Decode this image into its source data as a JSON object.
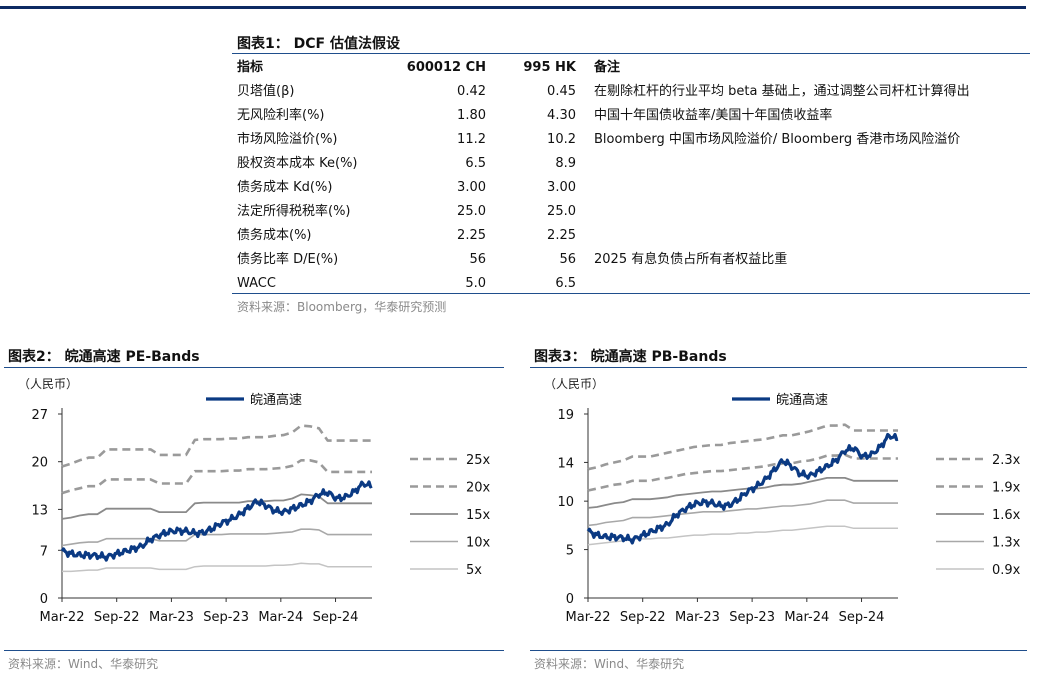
{
  "table": {
    "title": "图表1： DCF 估值法假设",
    "headers": [
      "指标",
      "600012 CH",
      "995 HK",
      "备注"
    ],
    "rows": [
      [
        "贝塔值(β)",
        "0.42",
        "0.45",
        "在剔除杠杆的行业平均 beta 基础上，通过调整公司杆杠计算得出"
      ],
      [
        "无风险利率(%)",
        "1.80",
        "4.30",
        "中国十年国债收益率/美国十年国债收益率"
      ],
      [
        "市场风险溢价(%)",
        "11.2",
        "10.2",
        "Bloomberg 中国市场风险溢价/ Bloomberg 香港市场风险溢价"
      ],
      [
        "股权资本成本 Ke(%)",
        "6.5",
        "8.9",
        ""
      ],
      [
        "债务成本 Kd(%)",
        "3.00",
        "3.00",
        ""
      ],
      [
        "法定所得税税率(%)",
        "25.0",
        "25.0",
        ""
      ],
      [
        "债务成本(%)",
        "2.25",
        "2.25",
        ""
      ],
      [
        "债务比率 D/E(%)",
        "56",
        "56",
        "2025 有息负债占所有者权益比重"
      ],
      [
        "WACC",
        "5.0",
        "6.5",
        ""
      ]
    ],
    "source": "资料来源：Bloomberg，华泰研究预测"
  },
  "chart_data": [
    {
      "type": "line",
      "title": "图表2： 皖通高速 PE-Bands",
      "ylabel": "（人民币）",
      "ylim": [
        0,
        27
      ],
      "yticks": [
        0,
        7,
        13,
        20,
        27
      ],
      "xticks": [
        "Mar-22",
        "Sep-22",
        "Mar-23",
        "Sep-23",
        "Mar-24",
        "Sep-24"
      ],
      "x_start": "2022-03",
      "x_end": "2025-01",
      "series": [
        {
          "name": "皖通高速",
          "style": "price",
          "values": [
            6.9,
            6.5,
            6.3,
            6.3,
            6.2,
            6.0,
            6.4,
            6.8,
            7.2,
            7.6,
            8.6,
            9.2,
            9.7,
            9.9,
            9.8,
            9.5,
            9.6,
            10.2,
            11.0,
            11.5,
            12.2,
            13.2,
            14.2,
            13.6,
            12.8,
            12.6,
            13.1,
            13.6,
            14.2,
            15.2,
            15.5,
            14.6,
            14.8,
            15.6,
            16.8,
            16.4
          ]
        },
        {
          "name": "25x",
          "style": "dash",
          "values": [
            19.3,
            19.7,
            20.2,
            20.6,
            20.6,
            21.8,
            21.8,
            21.8,
            21.8,
            21.8,
            21.8,
            21.0,
            21.0,
            21.0,
            21.0,
            23.2,
            23.3,
            23.3,
            23.3,
            23.4,
            23.4,
            23.6,
            23.6,
            23.6,
            23.8,
            23.9,
            24.3,
            25.3,
            25.2,
            24.9,
            23.1,
            23.1,
            23.1,
            23.1,
            23.1,
            23.1
          ]
        },
        {
          "name": "20x",
          "style": "dash",
          "values": [
            15.4,
            15.8,
            16.1,
            16.4,
            16.4,
            17.4,
            17.4,
            17.4,
            17.4,
            17.4,
            17.4,
            16.8,
            16.8,
            16.8,
            16.8,
            18.6,
            18.6,
            18.6,
            18.6,
            18.7,
            18.7,
            18.9,
            18.9,
            18.9,
            19.0,
            19.1,
            19.4,
            20.2,
            20.2,
            19.9,
            18.5,
            18.5,
            18.5,
            18.5,
            18.5,
            18.5
          ]
        },
        {
          "name": "15x",
          "style": "solid-dark",
          "values": [
            11.6,
            11.8,
            12.1,
            12.3,
            12.3,
            13.1,
            13.1,
            13.1,
            13.1,
            13.1,
            13.1,
            12.6,
            12.6,
            12.6,
            12.6,
            13.9,
            14.0,
            14.0,
            14.0,
            14.0,
            14.0,
            14.2,
            14.2,
            14.2,
            14.3,
            14.3,
            14.6,
            15.2,
            15.1,
            14.9,
            13.9,
            13.9,
            13.9,
            13.9,
            13.9,
            13.9
          ]
        },
        {
          "name": "10x",
          "style": "solid-mid",
          "values": [
            7.7,
            7.9,
            8.1,
            8.2,
            8.2,
            8.7,
            8.7,
            8.7,
            8.7,
            8.7,
            8.7,
            8.4,
            8.4,
            8.4,
            8.4,
            9.3,
            9.3,
            9.3,
            9.3,
            9.4,
            9.4,
            9.4,
            9.4,
            9.4,
            9.5,
            9.6,
            9.7,
            10.1,
            10.1,
            10.0,
            9.3,
            9.3,
            9.3,
            9.3,
            9.3,
            9.3
          ]
        },
        {
          "name": "5x",
          "style": "solid-light",
          "values": [
            3.9,
            3.9,
            4.0,
            4.1,
            4.1,
            4.4,
            4.4,
            4.4,
            4.4,
            4.4,
            4.4,
            4.2,
            4.2,
            4.2,
            4.2,
            4.6,
            4.7,
            4.7,
            4.7,
            4.7,
            4.7,
            4.7,
            4.7,
            4.7,
            4.8,
            4.8,
            4.9,
            5.1,
            5.0,
            5.0,
            4.6,
            4.6,
            4.6,
            4.6,
            4.6,
            4.6
          ]
        }
      ],
      "source": "资料来源：Wind、华泰研究"
    },
    {
      "type": "line",
      "title": "图表3： 皖通高速 PB-Bands",
      "ylabel": "（人民币）",
      "ylim": [
        0,
        19
      ],
      "yticks": [
        0,
        5,
        10,
        14,
        19
      ],
      "xticks": [
        "Mar-22",
        "Sep-22",
        "Mar-23",
        "Sep-23",
        "Mar-24",
        "Sep-24"
      ],
      "x_start": "2022-03",
      "x_end": "2025-01",
      "series": [
        {
          "name": "皖通高速",
          "style": "price",
          "values": [
            6.9,
            6.5,
            6.3,
            6.3,
            6.2,
            6.0,
            6.4,
            6.8,
            7.2,
            7.6,
            8.6,
            9.2,
            9.7,
            9.9,
            9.8,
            9.5,
            9.6,
            10.2,
            11.0,
            11.5,
            12.2,
            13.2,
            14.2,
            13.6,
            12.8,
            12.6,
            13.1,
            13.6,
            14.2,
            15.2,
            15.5,
            14.6,
            14.8,
            15.6,
            16.8,
            16.4
          ]
        },
        {
          "name": "2.3x",
          "style": "dash",
          "values": [
            13.3,
            13.5,
            13.8,
            14.0,
            14.2,
            14.6,
            14.6,
            14.6,
            14.8,
            15.0,
            15.2,
            15.4,
            15.6,
            15.7,
            15.8,
            15.8,
            16.0,
            16.1,
            16.2,
            16.3,
            16.4,
            16.6,
            16.8,
            16.8,
            17.0,
            17.2,
            17.5,
            17.8,
            17.8,
            17.9,
            17.3,
            17.3,
            17.3,
            17.3,
            17.3,
            17.3
          ]
        },
        {
          "name": "1.9x",
          "style": "dash",
          "values": [
            11.1,
            11.3,
            11.5,
            11.7,
            11.8,
            12.1,
            12.1,
            12.1,
            12.3,
            12.4,
            12.6,
            12.8,
            12.9,
            13.0,
            13.1,
            13.1,
            13.2,
            13.3,
            13.4,
            13.5,
            13.6,
            13.8,
            13.9,
            13.9,
            14.1,
            14.2,
            14.4,
            14.7,
            14.7,
            14.8,
            14.4,
            14.4,
            14.4,
            14.4,
            14.4,
            14.4
          ]
        },
        {
          "name": "1.6x",
          "style": "solid-dark",
          "values": [
            9.3,
            9.4,
            9.6,
            9.8,
            9.9,
            10.2,
            10.2,
            10.2,
            10.3,
            10.4,
            10.6,
            10.7,
            10.8,
            10.9,
            11.0,
            11.0,
            11.1,
            11.2,
            11.3,
            11.3,
            11.4,
            11.6,
            11.7,
            11.7,
            11.8,
            12.0,
            12.2,
            12.4,
            12.4,
            12.4,
            12.1,
            12.1,
            12.1,
            12.1,
            12.1,
            12.1
          ]
        },
        {
          "name": "1.3x",
          "style": "solid-mid",
          "values": [
            7.5,
            7.6,
            7.8,
            7.9,
            8.0,
            8.3,
            8.3,
            8.3,
            8.4,
            8.5,
            8.6,
            8.7,
            8.8,
            8.9,
            8.9,
            8.9,
            9.0,
            9.1,
            9.2,
            9.2,
            9.3,
            9.4,
            9.5,
            9.5,
            9.6,
            9.7,
            9.9,
            10.1,
            10.1,
            10.1,
            9.8,
            9.8,
            9.8,
            9.8,
            9.8,
            9.8
          ]
        },
        {
          "name": "0.9x",
          "style": "solid-light",
          "values": [
            5.5,
            5.6,
            5.7,
            5.8,
            5.9,
            6.1,
            6.1,
            6.1,
            6.2,
            6.2,
            6.3,
            6.4,
            6.5,
            6.5,
            6.6,
            6.6,
            6.6,
            6.7,
            6.7,
            6.8,
            6.8,
            6.9,
            7.0,
            7.0,
            7.1,
            7.2,
            7.3,
            7.4,
            7.4,
            7.4,
            7.2,
            7.2,
            7.2,
            7.2,
            7.2,
            7.2
          ]
        }
      ],
      "source": "资料来源：Wind、华泰研究"
    }
  ]
}
